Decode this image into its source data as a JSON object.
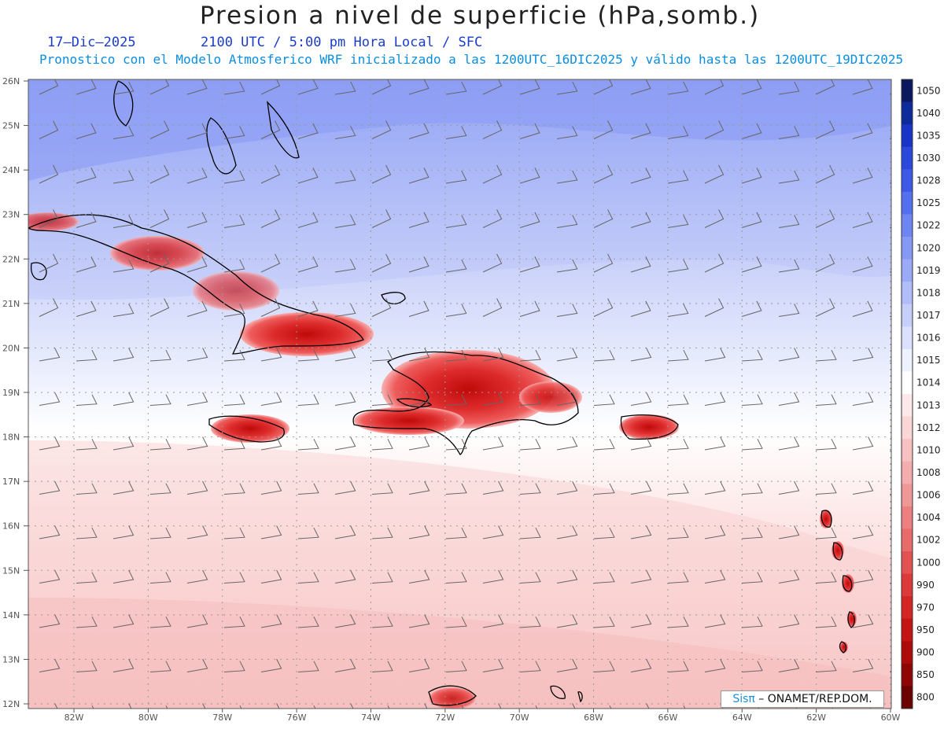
{
  "header": {
    "title": "Presion a nivel de superficie (hPa,somb.)",
    "date": "17–Dic–2025",
    "time": "2100 UTC / 5:00 pm Hora Local / SFC",
    "model_note": "Pronostico con el Modelo Atmosferico WRF inicializado a las 1200UTC_16DIC2025 y válido hasta las  1200UTC_19DIC2025"
  },
  "axes": {
    "lat_labels": [
      "26N",
      "25N",
      "24N",
      "23N",
      "22N",
      "21N",
      "20N",
      "19N",
      "18N",
      "17N",
      "16N",
      "15N",
      "14N",
      "13N",
      "12N"
    ],
    "lon_labels": [
      "82W",
      "80W",
      "78W",
      "76W",
      "74W",
      "72W",
      "70W",
      "68W",
      "66W",
      "64W",
      "62W",
      "60W"
    ]
  },
  "legend": {
    "levels": [
      "1050",
      "1040",
      "1035",
      "1030",
      "1028",
      "1025",
      "1022",
      "1020",
      "1019",
      "1018",
      "1017",
      "1016",
      "1015",
      "1014",
      "1013",
      "1012",
      "1010",
      "1008",
      "1006",
      "1004",
      "1002",
      "1000",
      "990",
      "970",
      "950",
      "900",
      "850",
      "800"
    ],
    "colors": [
      "#0b1a5e",
      "#0d2a9a",
      "#1834c8",
      "#2b48dc",
      "#3d5ae6",
      "#5470ee",
      "#6e86f2",
      "#8598f4",
      "#9aaaf6",
      "#b0bdf8",
      "#c6cffa",
      "#dbe1fc",
      "#eef1fe",
      "#ffffff",
      "#fde9e9",
      "#fbd6d6",
      "#f7c1c1",
      "#f4adad",
      "#f09797",
      "#ec8080",
      "#e86a6a",
      "#e35252",
      "#dc3a3a",
      "#d42525",
      "#c41414",
      "#ad0a0a",
      "#8e0505",
      "#6b0202"
    ]
  },
  "credit": {
    "brand": "Sisπ",
    "text": " – ONAMET/REP.DOM."
  }
}
